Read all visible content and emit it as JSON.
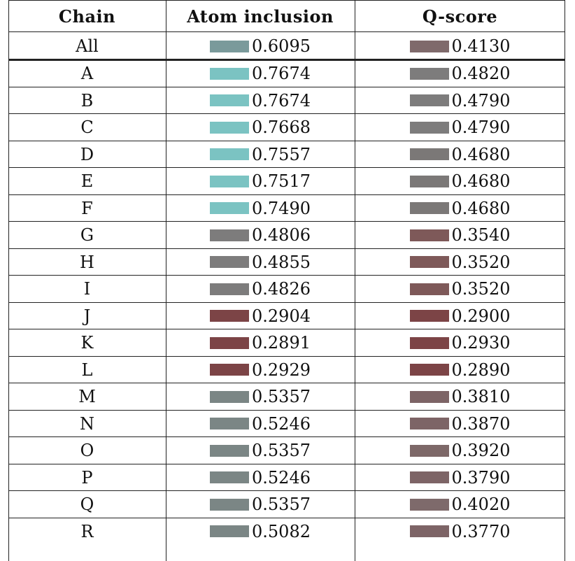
{
  "table": {
    "headers": {
      "chain": "Chain",
      "atom_inclusion": "Atom inclusion",
      "q_score": "Q-score"
    },
    "all_row": {
      "chain": "All",
      "atom_inclusion": "0.6095",
      "atom_color": "#7a9a9b",
      "q_score": "0.4130",
      "q_color": "#7f6a6b"
    },
    "rows": [
      {
        "chain": "A",
        "atom_inclusion": "0.7674",
        "atom_color": "#7bc3c2",
        "q_score": "0.4820",
        "q_color": "#7d7c7c"
      },
      {
        "chain": "B",
        "atom_inclusion": "0.7674",
        "atom_color": "#7bc3c2",
        "q_score": "0.4790",
        "q_color": "#7d7c7c"
      },
      {
        "chain": "C",
        "atom_inclusion": "0.7668",
        "atom_color": "#7bc3c2",
        "q_score": "0.4790",
        "q_color": "#7d7c7c"
      },
      {
        "chain": "D",
        "atom_inclusion": "0.7557",
        "atom_color": "#7bc3c2",
        "q_score": "0.4680",
        "q_color": "#7b7877"
      },
      {
        "chain": "E",
        "atom_inclusion": "0.7517",
        "atom_color": "#7bc3c2",
        "q_score": "0.4680",
        "q_color": "#7b7877"
      },
      {
        "chain": "F",
        "atom_inclusion": "0.7490",
        "atom_color": "#7bc3c2",
        "q_score": "0.4680",
        "q_color": "#7b7877"
      },
      {
        "chain": "G",
        "atom_inclusion": "0.4806",
        "atom_color": "#7d7c7c",
        "q_score": "0.3540",
        "q_color": "#7e5959"
      },
      {
        "chain": "H",
        "atom_inclusion": "0.4855",
        "atom_color": "#7d7c7c",
        "q_score": "0.3520",
        "q_color": "#7e5959"
      },
      {
        "chain": "I",
        "atom_inclusion": "0.4826",
        "atom_color": "#7d7c7c",
        "q_score": "0.3520",
        "q_color": "#7e5959"
      },
      {
        "chain": "J",
        "atom_inclusion": "0.2904",
        "atom_color": "#7c4446",
        "q_score": "0.2900",
        "q_color": "#7c4446"
      },
      {
        "chain": "K",
        "atom_inclusion": "0.2891",
        "atom_color": "#7c4446",
        "q_score": "0.2930",
        "q_color": "#7c4446"
      },
      {
        "chain": "L",
        "atom_inclusion": "0.2929",
        "atom_color": "#7c4446",
        "q_score": "0.2890",
        "q_color": "#7c4446"
      },
      {
        "chain": "M",
        "atom_inclusion": "0.5357",
        "atom_color": "#7b8685",
        "q_score": "0.3810",
        "q_color": "#7d6466"
      },
      {
        "chain": "N",
        "atom_inclusion": "0.5246",
        "atom_color": "#7b8685",
        "q_score": "0.3870",
        "q_color": "#7d6466"
      },
      {
        "chain": "O",
        "atom_inclusion": "0.5357",
        "atom_color": "#7b8685",
        "q_score": "0.3920",
        "q_color": "#7d6868"
      },
      {
        "chain": "P",
        "atom_inclusion": "0.5246",
        "atom_color": "#7b8685",
        "q_score": "0.3790",
        "q_color": "#7d6466"
      },
      {
        "chain": "Q",
        "atom_inclusion": "0.5357",
        "atom_color": "#7b8685",
        "q_score": "0.4020",
        "q_color": "#7e6a6b"
      },
      {
        "chain": "R",
        "atom_inclusion": "0.5082",
        "atom_color": "#7b8685",
        "q_score": "0.3770",
        "q_color": "#7d6466"
      }
    ]
  }
}
